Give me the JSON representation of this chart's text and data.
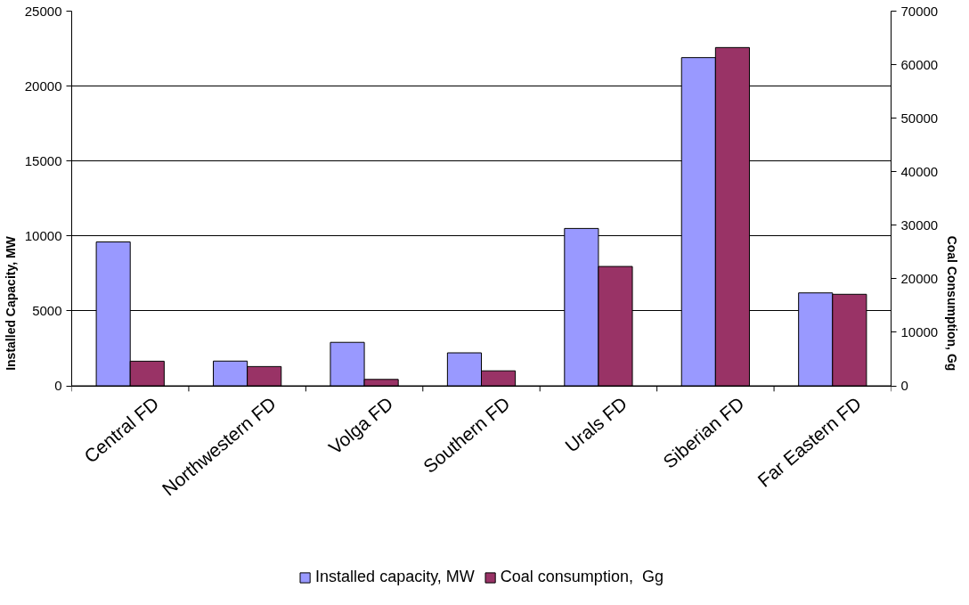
{
  "chart_data": {
    "type": "bar",
    "categories": [
      "Central FD",
      "Northwestern FD",
      "Volga FD",
      "Southern FD",
      "Urals FD",
      "Siberian FD",
      "Far Eastern FD"
    ],
    "ylabel": "Installed Capacity, MW",
    "y2label": "Coal Consumption, Gg",
    "ylim": [
      0,
      25000
    ],
    "yticks": [
      0,
      5000,
      10000,
      15000,
      20000,
      25000
    ],
    "y2lim": [
      0,
      70000
    ],
    "y2ticks": [
      0,
      10000,
      20000,
      30000,
      40000,
      50000,
      60000,
      70000
    ],
    "grid": "y",
    "legend": "bottom",
    "series": [
      {
        "name": "Installed capacity, MW",
        "color": "#9999ff",
        "values": [
          9600,
          1650,
          2900,
          2200,
          10500,
          21900,
          6200
        ]
      },
      {
        "name": "Coal consumption,  Gg",
        "color": "#993366",
        "axis": "y2",
        "values": [
          4600,
          3600,
          1200,
          2800,
          22300,
          63200,
          17100
        ]
      }
    ]
  }
}
